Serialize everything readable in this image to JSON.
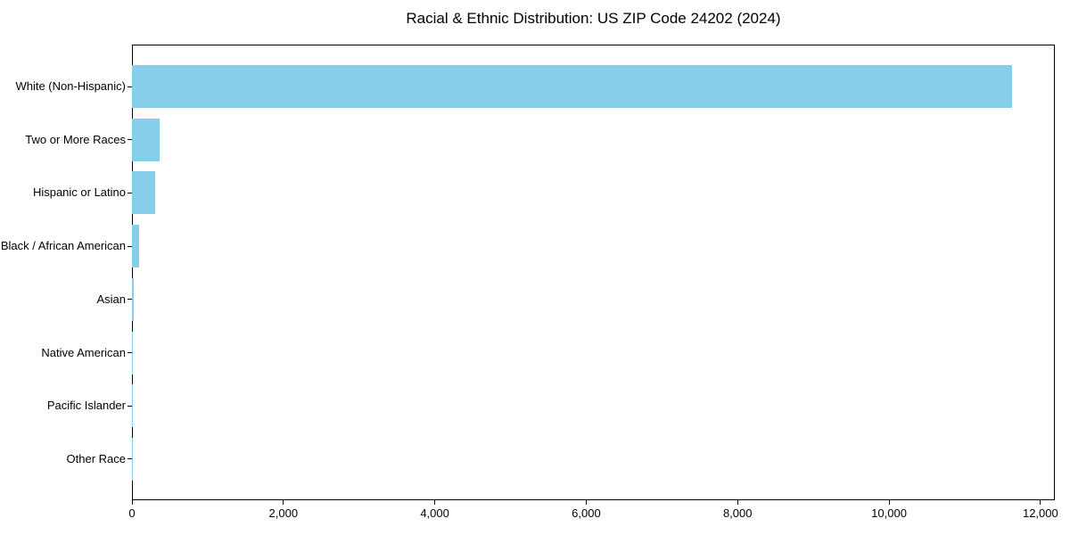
{
  "chart_data": {
    "type": "bar",
    "orientation": "horizontal",
    "title": "Racial & Ethnic Distribution: US ZIP Code 24202 (2024)",
    "categories": [
      "White (Non-Hispanic)",
      "Two or More Races",
      "Hispanic or Latino",
      "Black / African American",
      "Asian",
      "Native American",
      "Pacific Islander",
      "Other Race"
    ],
    "values": [
      11620,
      365,
      310,
      100,
      18,
      5,
      2,
      2
    ],
    "xlabel": "",
    "ylabel": "",
    "xlim": [
      0,
      12190
    ],
    "x_ticks": [
      0,
      2000,
      4000,
      6000,
      8000,
      10000,
      12000
    ],
    "x_tick_labels": [
      "0",
      "2,000",
      "4,000",
      "6,000",
      "8,000",
      "10,000",
      "12,000"
    ],
    "bar_color": "#87CEEB",
    "grid": false,
    "legend_position": "none",
    "background_color": "#ffffff",
    "text_color": "#000000"
  }
}
